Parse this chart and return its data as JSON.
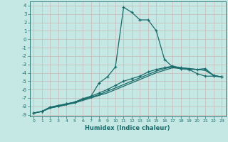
{
  "xlabel": "Humidex (Indice chaleur)",
  "bg_color": "#c5e8e5",
  "grid_color": "#c8b8b8",
  "line_color": "#1a6b6b",
  "xlim": [
    -0.5,
    23.5
  ],
  "ylim": [
    -9.2,
    4.5
  ],
  "xticks": [
    0,
    1,
    2,
    3,
    4,
    5,
    6,
    7,
    8,
    9,
    10,
    11,
    12,
    13,
    14,
    15,
    16,
    17,
    18,
    19,
    20,
    21,
    22,
    23
  ],
  "yticks": [
    4,
    3,
    2,
    1,
    0,
    -1,
    -2,
    -3,
    -4,
    -5,
    -6,
    -7,
    -8,
    -9
  ],
  "line1_x": [
    0,
    1,
    2,
    3,
    4,
    5,
    6,
    7,
    8,
    9,
    10,
    11,
    12,
    13,
    14,
    15,
    16,
    17,
    18,
    19,
    20,
    21,
    22,
    23
  ],
  "line1_y": [
    -8.8,
    -8.6,
    -8.1,
    -7.9,
    -7.7,
    -7.5,
    -7.1,
    -6.8,
    -5.2,
    -4.5,
    -3.3,
    3.8,
    3.2,
    2.3,
    2.3,
    1.0,
    -2.4,
    -3.3,
    -3.5,
    -3.6,
    -4.1,
    -4.4,
    -4.4,
    -4.5
  ],
  "line2_x": [
    0,
    1,
    2,
    3,
    4,
    5,
    6,
    7,
    8,
    9,
    10,
    11,
    12,
    13,
    14,
    15,
    16,
    17,
    18,
    19,
    20,
    21,
    22,
    23
  ],
  "line2_y": [
    -8.8,
    -8.6,
    -8.1,
    -7.9,
    -7.7,
    -7.5,
    -7.1,
    -6.8,
    -6.4,
    -6.0,
    -5.5,
    -5.0,
    -4.7,
    -4.4,
    -3.9,
    -3.6,
    -3.4,
    -3.2,
    -3.4,
    -3.5,
    -3.6,
    -3.5,
    -4.3,
    -4.5
  ],
  "line3_x": [
    0,
    1,
    2,
    3,
    4,
    5,
    6,
    7,
    8,
    9,
    10,
    11,
    12,
    13,
    14,
    15,
    16,
    17,
    18,
    19,
    20,
    21,
    22,
    23
  ],
  "line3_y": [
    -8.8,
    -8.6,
    -8.2,
    -8.0,
    -7.8,
    -7.5,
    -7.2,
    -6.9,
    -6.6,
    -6.2,
    -5.8,
    -5.4,
    -5.0,
    -4.6,
    -4.2,
    -3.8,
    -3.5,
    -3.3,
    -3.4,
    -3.5,
    -3.6,
    -3.7,
    -4.3,
    -4.5
  ],
  "line4_x": [
    0,
    1,
    2,
    3,
    4,
    5,
    6,
    7,
    8,
    9,
    10,
    11,
    12,
    13,
    14,
    15,
    16,
    17,
    18,
    19,
    20,
    21,
    22,
    23
  ],
  "line4_y": [
    -8.8,
    -8.6,
    -8.2,
    -8.0,
    -7.8,
    -7.6,
    -7.3,
    -7.0,
    -6.7,
    -6.4,
    -6.0,
    -5.6,
    -5.2,
    -4.8,
    -4.4,
    -4.0,
    -3.7,
    -3.4,
    -3.5,
    -3.6,
    -3.6,
    -3.7,
    -4.3,
    -4.5
  ]
}
